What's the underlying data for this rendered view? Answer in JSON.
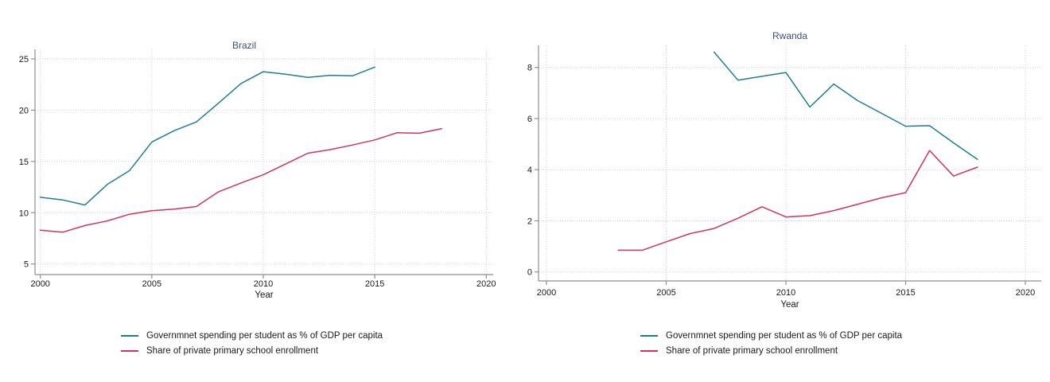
{
  "figure": {
    "background": "#ffffff",
    "grid_color": "#d2d2d2",
    "axis_color": "#8f8f8f",
    "tick_label_color": "#1a1a1a",
    "title_color": "#3e4c80"
  },
  "chart_data": [
    {
      "type": "line",
      "title": "Brazil",
      "xlabel": "Year",
      "ylabel": "",
      "xlim": [
        2000,
        2020
      ],
      "xticks": [
        2000,
        2005,
        2010,
        2015,
        2020
      ],
      "yticks": [
        5,
        10,
        15,
        20,
        25
      ],
      "grid": true,
      "legend_position": "bottom",
      "series": [
        {
          "name": "Governmnet spending per student as % of GDP per capita",
          "color": "#1f7e93",
          "x": [
            2000,
            2001,
            2002,
            2003,
            2004,
            2005,
            2006,
            2007,
            2008,
            2009,
            2010,
            2011,
            2012,
            2013,
            2014,
            2015
          ],
          "values": [
            11.5,
            11.25,
            10.75,
            12.75,
            14.1,
            16.9,
            18.0,
            18.85,
            20.7,
            22.6,
            23.75,
            23.5,
            23.2,
            23.4,
            23.35,
            24.2
          ]
        },
        {
          "name": "Share of private primary school enrollment",
          "color": "#d0355e",
          "x": [
            2000,
            2001,
            2002,
            2003,
            2004,
            2005,
            2006,
            2007,
            2008,
            2009,
            2010,
            2011,
            2012,
            2013,
            2014,
            2015,
            2016,
            2017,
            2018
          ],
          "values": [
            8.3,
            8.1,
            8.75,
            9.2,
            9.85,
            10.2,
            10.35,
            10.6,
            12.05,
            12.9,
            13.7,
            14.75,
            15.8,
            16.15,
            16.6,
            17.1,
            17.8,
            17.75,
            18.2
          ]
        }
      ]
    },
    {
      "type": "line",
      "title": "Rwanda",
      "xlabel": "Year",
      "ylabel": "",
      "xlim": [
        2000,
        2020
      ],
      "xticks": [
        2000,
        2005,
        2010,
        2015,
        2020
      ],
      "yticks": [
        0,
        2,
        4,
        6,
        8
      ],
      "grid": true,
      "legend_position": "bottom",
      "series": [
        {
          "name": "Governmnet spending per student as % of GDP per capita",
          "color": "#1f7e93",
          "x": [
            2007,
            2008,
            2009,
            2010,
            2011,
            2012,
            2013,
            2014,
            2015,
            2016,
            2017,
            2018
          ],
          "values": [
            8.6,
            7.5,
            7.65,
            7.8,
            6.45,
            7.35,
            6.7,
            6.2,
            5.7,
            5.72,
            5.05,
            4.4
          ]
        },
        {
          "name": "Share of private primary school enrollment",
          "color": "#d0355e",
          "x": [
            2003,
            2004,
            2005,
            2006,
            2007,
            2008,
            2009,
            2010,
            2011,
            2012,
            2013,
            2014,
            2015,
            2016,
            2017,
            2018
          ],
          "values": [
            0.85,
            0.85,
            1.18,
            1.5,
            1.7,
            2.1,
            2.55,
            2.15,
            2.2,
            2.4,
            2.65,
            2.9,
            3.1,
            4.75,
            3.75,
            4.1
          ]
        }
      ]
    }
  ]
}
